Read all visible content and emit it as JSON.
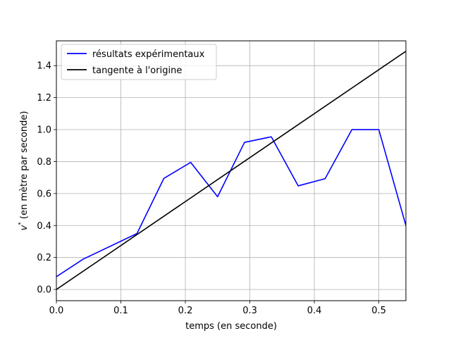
{
  "chart_data": {
    "type": "line",
    "xlabel": "temps (en seconde)",
    "ylabel_main": "v",
    "ylabel_sup": "*",
    "ylabel_rest": " (en mètre par seconde)",
    "xlim": [
      0,
      0.542
    ],
    "ylim": [
      -0.07,
      1.555
    ],
    "x_ticks": [
      0.0,
      0.1,
      0.2,
      0.3,
      0.4,
      0.5
    ],
    "x_tick_labels": [
      "0.0",
      "0.1",
      "0.2",
      "0.3",
      "0.4",
      "0.5"
    ],
    "y_ticks": [
      0.0,
      0.2,
      0.4,
      0.6,
      0.8,
      1.0,
      1.2,
      1.4
    ],
    "y_tick_labels": [
      "0.0",
      "0.2",
      "0.4",
      "0.6",
      "0.8",
      "1.0",
      "1.2",
      "1.4"
    ],
    "grid": true,
    "legend_position": "top-left",
    "series": [
      {
        "name": "résultats expérimentaux",
        "color": "#0000ff",
        "x": [
          0.0,
          0.0417,
          0.125,
          0.1667,
          0.2083,
          0.25,
          0.2917,
          0.3333,
          0.375,
          0.4167,
          0.4583,
          0.5,
          0.542
        ],
        "y": [
          0.08,
          0.19,
          0.35,
          0.695,
          0.795,
          0.58,
          0.92,
          0.955,
          0.648,
          0.693,
          1.0,
          1.0,
          0.4
        ]
      },
      {
        "name": "tangente à l'origine",
        "color": "#000000",
        "x": [
          0.0,
          0.542
        ],
        "y": [
          0.0,
          1.49
        ]
      }
    ]
  }
}
